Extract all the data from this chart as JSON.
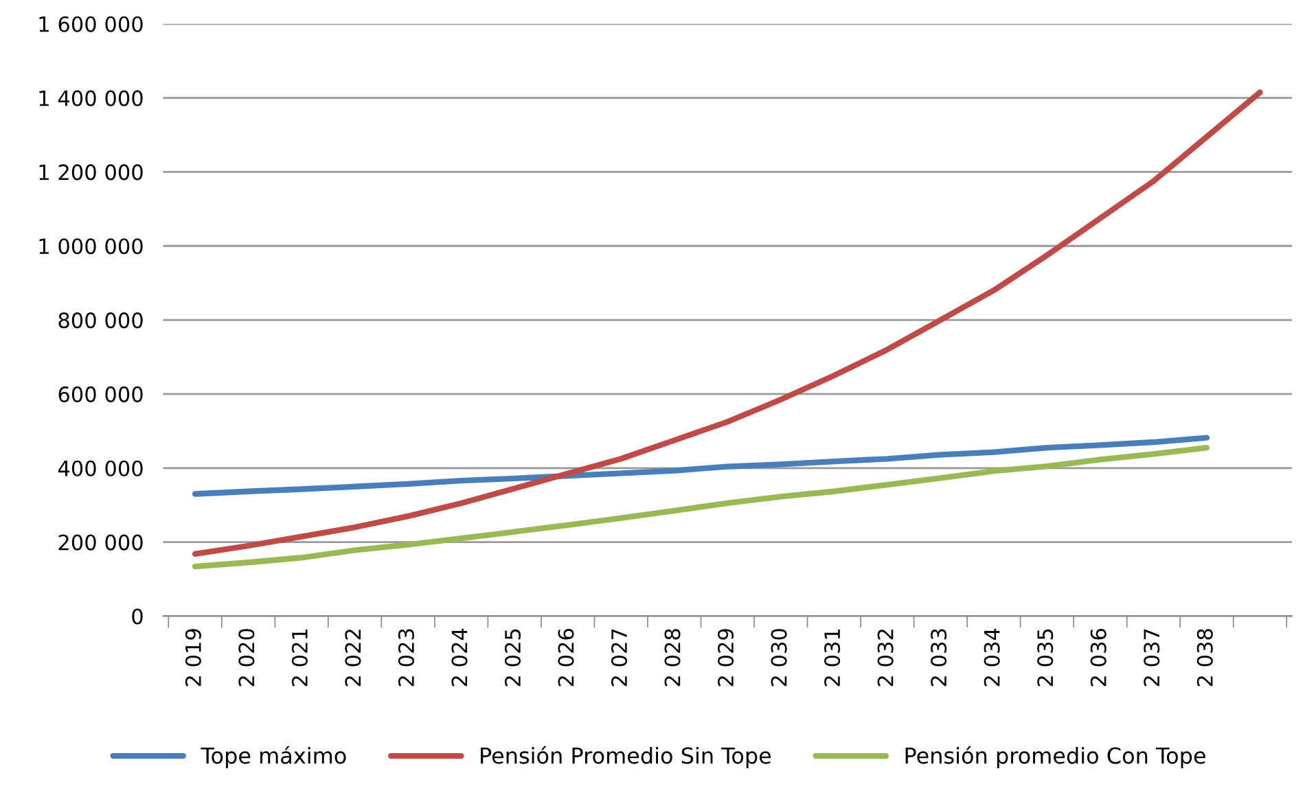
{
  "chart_data": {
    "type": "line",
    "categories": [
      "2 019",
      "2 020",
      "2 021",
      "2 022",
      "2 023",
      "2 024",
      "2 025",
      "2 026",
      "2 027",
      "2 028",
      "2 029",
      "2 030",
      "2 031",
      "2 032",
      "2 033",
      "2 034",
      "2 035",
      "2 036",
      "2 037",
      "2 038",
      null
    ],
    "series": [
      {
        "name": "Tope máximo",
        "color": "#4a7ebb",
        "values": [
          330000,
          337000,
          343000,
          350000,
          357000,
          366000,
          372000,
          379000,
          386000,
          393000,
          404000,
          410000,
          418000,
          425000,
          436000,
          443000,
          455000,
          462000,
          470000,
          482000,
          null
        ]
      },
      {
        "name": "Pensión Promedio Sin Tope",
        "color": "#be4b48",
        "values": [
          168000,
          190000,
          215000,
          240000,
          270000,
          305000,
          345000,
          385000,
          425000,
          475000,
          525000,
          585000,
          650000,
          720000,
          800000,
          880000,
          975000,
          1075000,
          1175000,
          1295000,
          1415000
        ]
      },
      {
        "name": "Pensión promedio Con Tope",
        "color": "#98b954",
        "values": [
          134000,
          145000,
          158000,
          178000,
          193000,
          210000,
          228000,
          246000,
          265000,
          285000,
          305000,
          323000,
          337000,
          355000,
          373000,
          392000,
          405000,
          423000,
          438000,
          455000,
          null
        ]
      }
    ],
    "ylim": [
      0,
      1600000
    ],
    "yticks": [
      0,
      {
        "value": 200000,
        "label": "200 000"
      },
      {
        "value": 400000,
        "label": "400 000"
      },
      {
        "value": 600000,
        "label": "600 000"
      },
      {
        "value": 800000,
        "label": "800 000"
      },
      {
        "value": 1000000,
        "label": "1 000 000"
      },
      {
        "value": 1200000,
        "label": "1 200 000"
      },
      {
        "value": 1400000,
        "label": "1 400 000"
      },
      {
        "value": 1600000,
        "label": "1 600 000"
      }
    ],
    "grid": "y",
    "legend": "bottom",
    "marker": "none",
    "line_style": "solid"
  }
}
